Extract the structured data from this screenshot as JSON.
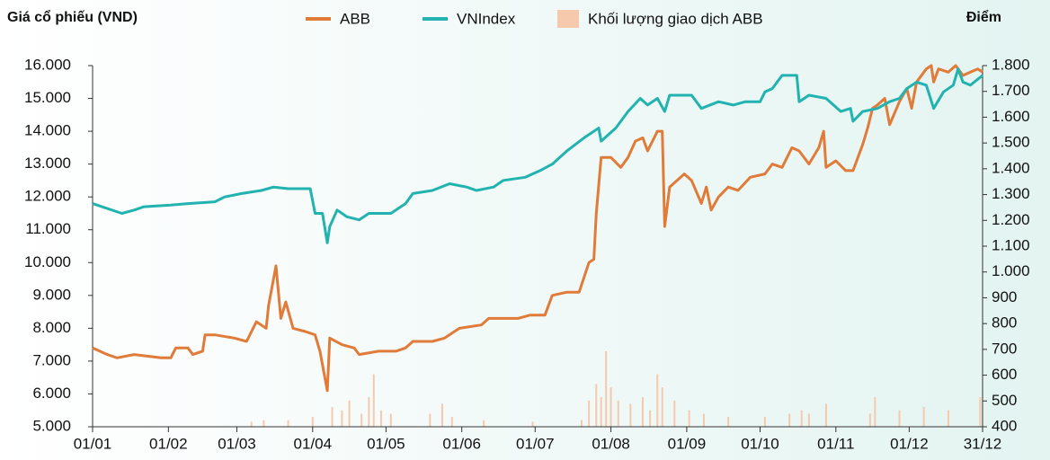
{
  "chart_data": {
    "type": "line",
    "title": "Giá cổ phiếu (VND)",
    "y2_label": "Điểm",
    "xlim": [
      0,
      364
    ],
    "xticks": [
      {
        "value": 0,
        "label": "01/01"
      },
      {
        "value": 31,
        "label": "01/02"
      },
      {
        "value": 59,
        "label": "01/03"
      },
      {
        "value": 90,
        "label": "01/04"
      },
      {
        "value": 120,
        "label": "01/05"
      },
      {
        "value": 151,
        "label": "01/06"
      },
      {
        "value": 181,
        "label": "01/07"
      },
      {
        "value": 212,
        "label": "01/08"
      },
      {
        "value": 243,
        "label": "01/09"
      },
      {
        "value": 273,
        "label": "01/10"
      },
      {
        "value": 304,
        "label": "01/11"
      },
      {
        "value": 334,
        "label": "01/12"
      },
      {
        "value": 364,
        "label": "31/12"
      }
    ],
    "ylim": [
      5000,
      16000
    ],
    "yticks": [
      {
        "value": 5000,
        "label": "5.000"
      },
      {
        "value": 6000,
        "label": "6.000"
      },
      {
        "value": 7000,
        "label": "7.000"
      },
      {
        "value": 8000,
        "label": "8.000"
      },
      {
        "value": 9000,
        "label": "9.000"
      },
      {
        "value": 10000,
        "label": "10.000"
      },
      {
        "value": 11000,
        "label": "11.000"
      },
      {
        "value": 12000,
        "label": "12.000"
      },
      {
        "value": 13000,
        "label": "13.000"
      },
      {
        "value": 14000,
        "label": "14.000"
      },
      {
        "value": 15000,
        "label": "15.000"
      },
      {
        "value": 16000,
        "label": "16.000"
      }
    ],
    "y2lim": [
      400,
      1800
    ],
    "y2ticks": [
      400,
      500,
      600,
      700,
      800,
      900,
      {
        "value": 1000,
        "label": "1.000"
      },
      {
        "value": 1100,
        "label": "1.100"
      },
      {
        "value": 1200,
        "label": "1.200"
      },
      {
        "value": 1300,
        "label": "1.300"
      },
      {
        "value": 1400,
        "label": "1.400"
      },
      {
        "value": 1500,
        "label": "1.500"
      },
      {
        "value": 1600,
        "label": "1.600"
      },
      {
        "value": 1700,
        "label": "1.700"
      },
      {
        "value": 1800,
        "label": "1.800"
      }
    ],
    "series": [
      {
        "name": "ABB",
        "color": "#e07b39",
        "x": [
          0,
          6,
          10,
          17,
          28,
          32,
          34,
          39,
          41,
          45,
          46,
          50,
          58,
          63,
          67,
          71,
          72,
          75,
          77,
          79,
          82,
          87,
          91,
          93,
          96,
          97,
          102,
          107,
          109,
          117,
          124,
          128,
          131,
          139,
          144,
          150,
          159,
          162,
          168,
          174,
          179,
          185,
          188,
          194,
          199,
          203,
          205,
          206,
          208,
          212,
          216,
          219,
          222,
          225,
          227,
          231,
          233,
          234,
          236,
          242,
          245,
          249,
          251,
          253,
          256,
          260,
          264,
          269,
          275,
          278,
          282,
          286,
          289,
          293,
          297,
          299,
          300,
          304,
          308,
          311,
          315,
          317,
          319,
          321,
          324,
          326,
          330,
          333,
          335,
          337,
          341,
          343,
          344,
          346,
          350,
          353,
          356,
          359,
          362,
          364
        ],
        "values": [
          7400,
          7200,
          7100,
          7200,
          7100,
          7100,
          7400,
          7400,
          7200,
          7300,
          7800,
          7800,
          7700,
          7600,
          8200,
          8000,
          8700,
          9900,
          8300,
          8800,
          8000,
          7900,
          7800,
          7300,
          6100,
          7700,
          7500,
          7400,
          7200,
          7300,
          7300,
          7400,
          7600,
          7600,
          7700,
          8000,
          8100,
          8300,
          8300,
          8300,
          8400,
          8400,
          9000,
          9100,
          9100,
          10000,
          10100,
          11500,
          13200,
          13200,
          12900,
          13200,
          13700,
          13800,
          13400,
          14000,
          14000,
          11100,
          12300,
          12700,
          12500,
          11800,
          12300,
          11600,
          12000,
          12300,
          12200,
          12600,
          12700,
          13000,
          12900,
          13500,
          13400,
          13000,
          13500,
          14000,
          12900,
          13100,
          12800,
          12800,
          13600,
          14100,
          14700,
          14800,
          15000,
          14200,
          14900,
          15300,
          14700,
          15500,
          15900,
          16000,
          15500,
          15900,
          15800,
          16000,
          15700,
          15800,
          15900,
          15800
        ]
      },
      {
        "name": "VNIndex",
        "color": "#22b3b0",
        "axis": "y2",
        "x": [
          0,
          6,
          12,
          17,
          21,
          32,
          39,
          50,
          54,
          61,
          69,
          74,
          80,
          89,
          91,
          94,
          96,
          97,
          100,
          104,
          109,
          113,
          122,
          128,
          131,
          139,
          146,
          153,
          157,
          164,
          168,
          177,
          183,
          188,
          194,
          201,
          207,
          208,
          214,
          219,
          224,
          227,
          231,
          234,
          236,
          245,
          249,
          256,
          262,
          267,
          273,
          275,
          278,
          282,
          288,
          289,
          293,
          300,
          306,
          310,
          311,
          315,
          321,
          326,
          330,
          333,
          337,
          341,
          344,
          348,
          352,
          354,
          356,
          359,
          364
        ],
        "values": [
          1265,
          1246,
          1227,
          1240,
          1253,
          1259,
          1265,
          1272,
          1291,
          1304,
          1316,
          1329,
          1323,
          1323,
          1227,
          1227,
          1113,
          1176,
          1240,
          1214,
          1202,
          1227,
          1227,
          1265,
          1304,
          1316,
          1342,
          1329,
          1316,
          1329,
          1355,
          1367,
          1393,
          1418,
          1469,
          1520,
          1558,
          1507,
          1558,
          1622,
          1673,
          1647,
          1673,
          1622,
          1685,
          1685,
          1634,
          1660,
          1647,
          1660,
          1660,
          1698,
          1711,
          1762,
          1762,
          1660,
          1685,
          1673,
          1622,
          1634,
          1584,
          1622,
          1634,
          1660,
          1673,
          1711,
          1736,
          1724,
          1634,
          1698,
          1724,
          1787,
          1736,
          1724,
          1762
        ]
      },
      {
        "name": "Khối lượng giao dịch ABB",
        "color": "#f6c9ad",
        "type": "bar",
        "x": [
          65,
          70,
          80,
          90,
          98,
          102,
          105,
          110,
          113,
          115,
          118,
          122,
          138,
          143,
          147,
          160,
          180,
          200,
          203,
          206,
          208,
          210,
          212,
          215,
          220,
          225,
          228,
          231,
          233,
          238,
          244,
          250,
          260,
          275,
          285,
          290,
          293,
          300,
          318,
          320,
          330,
          340,
          350,
          363
        ],
        "values": [
          5150,
          5200,
          5200,
          5300,
          5600,
          5500,
          5800,
          5400,
          5900,
          6600,
          5500,
          5400,
          5400,
          5700,
          5300,
          5200,
          5150,
          5200,
          5800,
          6300,
          5900,
          7300,
          6200,
          5800,
          5700,
          5900,
          5500,
          6600,
          6200,
          5800,
          5500,
          5400,
          5300,
          5300,
          5400,
          5500,
          5400,
          5700,
          5400,
          5900,
          5500,
          5600,
          5500,
          5900
        ]
      }
    ]
  }
}
